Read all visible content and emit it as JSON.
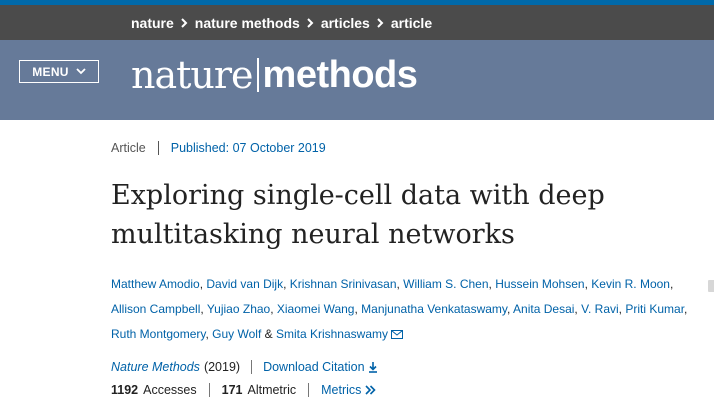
{
  "breadcrumb": {
    "items": [
      {
        "label": "nature"
      },
      {
        "label": "nature methods"
      },
      {
        "label": "articles"
      },
      {
        "label": "article"
      }
    ]
  },
  "header": {
    "menu_label": "MENU",
    "logo_part1": "nature",
    "logo_part2": "methods",
    "background": "#667a99"
  },
  "article": {
    "type": "Article",
    "published_label": "Published:",
    "published_date": "07 October 2019",
    "title_line1": "Exploring single-cell data with deep",
    "title_line2": "multitasking neural networks",
    "authors": [
      "Matthew Amodio",
      "David van Dijk",
      "Krishnan Srinivasan",
      "William S. Chen",
      "Hussein Mohsen",
      "Kevin R. Moon",
      "Allison Campbell",
      "Yujiao Zhao",
      "Xiaomei Wang",
      "Manjunatha Venkataswamy",
      "Anita Desai",
      "V. Ravi",
      "Priti Kumar",
      "Ruth Montgomery",
      "Guy Wolf",
      "Smita Krishnaswamy"
    ],
    "author_separator": ", ",
    "author_last_separator": " & ",
    "journal": "Nature Methods",
    "year": "(2019)",
    "download_label": "Download Citation",
    "accesses_count": "1192",
    "accesses_label": "Accesses",
    "altmetric_count": "171",
    "altmetric_label": "Altmetric",
    "metrics_label": "Metrics"
  },
  "colors": {
    "link": "#0062a8",
    "breadcrumb_bar": "#4b4b4b",
    "top_strip": "#0069aa"
  },
  "icons": {
    "menu": "chevron-down-icon",
    "author_contact": "envelope-icon",
    "download": "download-arrow-icon",
    "metrics": "double-chevron-right-icon"
  }
}
